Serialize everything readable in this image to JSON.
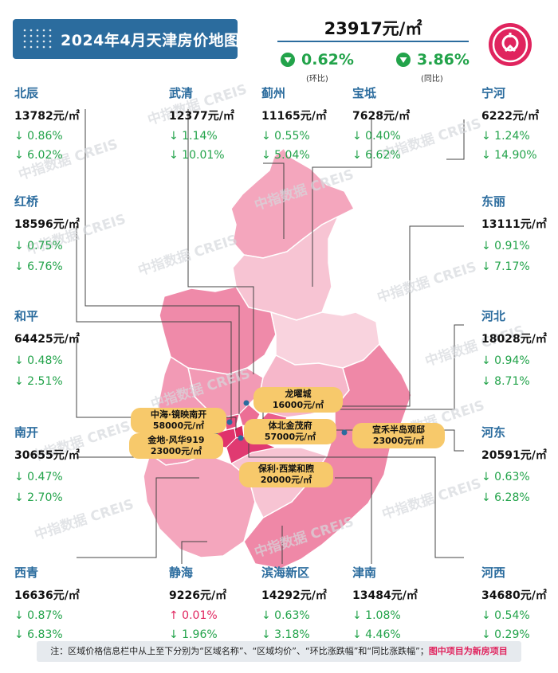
{
  "title": "2024年4月天津房价地图",
  "summary": {
    "avg_price": "23917元/㎡",
    "mom": {
      "value": "0.62%",
      "label": "(环比)"
    },
    "yoy": {
      "value": "3.86%",
      "label": "(同比)"
    }
  },
  "logo_icon": "creis-seal-icon",
  "watermark": "中指数据 CREIS",
  "colors": {
    "accent": "#2b6c9e",
    "down": "#22a34a",
    "up": "#e0245e",
    "project_label": "#f7c96b"
  },
  "districts": {
    "beichen": {
      "name": "北辰",
      "price": "13782元/㎡",
      "mom": "↓ 0.86%",
      "yoy": "↓ 6.02%"
    },
    "wuqing": {
      "name": "武清",
      "price": "12377元/㎡",
      "mom": "↓ 1.14%",
      "yoy": "↓ 10.01%"
    },
    "jizhou": {
      "name": "蓟州",
      "price": "11165元/㎡",
      "mom": "↓ 0.55%",
      "yoy": "↓ 5.04%"
    },
    "baodi": {
      "name": "宝坻",
      "price": "7628元/㎡",
      "mom": "↓ 0.40%",
      "yoy": "↓ 6.62%"
    },
    "ninghe": {
      "name": "宁河",
      "price": "6222元/㎡",
      "mom": "↓ 1.24%",
      "yoy": "↓ 14.90%"
    },
    "hongqiao": {
      "name": "红桥",
      "price": "18596元/㎡",
      "mom": "↓ 0.75%",
      "yoy": "↓ 6.76%"
    },
    "dongli": {
      "name": "东丽",
      "price": "13111元/㎡",
      "mom": "↓ 0.91%",
      "yoy": "↓ 7.17%"
    },
    "heping": {
      "name": "和平",
      "price": "64425元/㎡",
      "mom": "↓ 0.48%",
      "yoy": "↓ 2.51%"
    },
    "hebei": {
      "name": "河北",
      "price": "18028元/㎡",
      "mom": "↓ 0.94%",
      "yoy": "↓ 8.71%"
    },
    "nankai": {
      "name": "南开",
      "price": "30655元/㎡",
      "mom": "↓ 0.47%",
      "yoy": "↓ 2.70%"
    },
    "hedong": {
      "name": "河东",
      "price": "20591元/㎡",
      "mom": "↓ 0.63%",
      "yoy": "↓ 6.28%"
    },
    "xiqing": {
      "name": "西青",
      "price": "16636元/㎡",
      "mom": "↓ 0.87%",
      "yoy": "↓ 6.83%"
    },
    "jinghai": {
      "name": "静海",
      "price": "9226元/㎡",
      "mom": "↑ 0.01%",
      "yoy": "↓ 1.96%"
    },
    "binhai": {
      "name": "滨海新区",
      "price": "14292元/㎡",
      "mom": "↓ 0.63%",
      "yoy": "↓ 3.18%"
    },
    "jinnan": {
      "name": "津南",
      "price": "13484元/㎡",
      "mom": "↓ 1.08%",
      "yoy": "↓ 4.46%"
    },
    "hexi": {
      "name": "河西",
      "price": "34680元/㎡",
      "mom": "↓ 0.54%",
      "yoy": "↓ 0.29%"
    }
  },
  "projects": [
    {
      "name": "龙曜城",
      "price": "16000元/㎡"
    },
    {
      "name": "中海·镜映南开",
      "price": "58000元/㎡"
    },
    {
      "name": "体北金茂府",
      "price": "57000元/㎡"
    },
    {
      "name": "金地·风华919",
      "price": "23000元/㎡"
    },
    {
      "name": "宜禾半岛观邸",
      "price": "23000元/㎡"
    },
    {
      "name": "保利·西棠和煦",
      "price": "20000元/㎡"
    }
  ],
  "footer": {
    "note": "注：区域价格信息栏中从上至下分别为“区域名称”、“区域均价”、“环比涨跌幅”和“同比涨跌幅”；",
    "highlight": "图中项目为新房项目"
  }
}
